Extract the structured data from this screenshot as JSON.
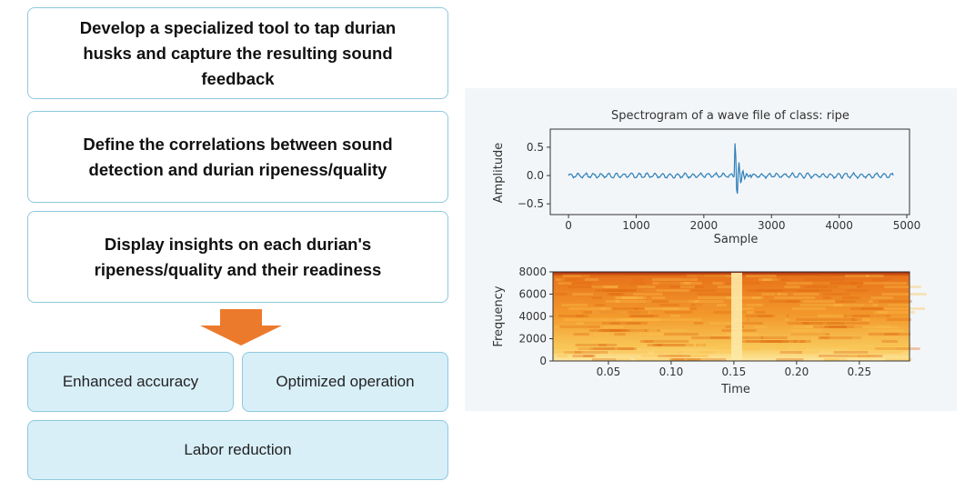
{
  "steps": [
    "Develop a specialized tool to tap durian husks and capture the resulting sound feedback",
    "Define the correlations between sound detection and durian ripeness/quality",
    "Display insights on each durian's ripeness/quality and their readiness"
  ],
  "benefits": [
    "Enhanced accuracy",
    "Optimized operation",
    "Labor reduction"
  ],
  "figure": {
    "waveform": {
      "title": "Spectrogram of a wave file of class: ripe",
      "xlabel": "Sample",
      "ylabel": "Amplitude",
      "xlim": [
        -270,
        5040
      ],
      "ylim": [
        -0.69,
        0.82
      ],
      "xticks": [
        0,
        1000,
        2000,
        3000,
        4000,
        5000
      ],
      "yticks": [
        {
          "value": -0.5,
          "label": "−0.5"
        },
        {
          "value": 0,
          "label": "0.0"
        },
        0.5
      ]
    },
    "spectrogram": {
      "xlabel": "Time",
      "ylabel": "Frequency",
      "xlim": [
        0.0058,
        0.29
      ],
      "ylim": [
        0,
        8000
      ],
      "xticks": [
        0.05,
        {
          "value": 0.1,
          "label": "0.10"
        },
        0.15,
        {
          "value": 0.2,
          "label": "0.20"
        },
        0.25
      ],
      "yticks": [
        0,
        2000,
        4000,
        6000,
        8000
      ]
    }
  }
}
